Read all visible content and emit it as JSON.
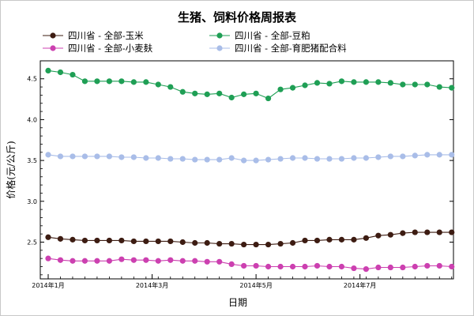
{
  "chart_data": {
    "type": "line",
    "title": "生猪、饲料价格周报表",
    "xlabel": "日期",
    "ylabel": "价格(元/公斤)",
    "ylim": [
      2.05,
      4.72
    ],
    "yticks": [
      2.5,
      3.0,
      3.5,
      4.0,
      4.5
    ],
    "ytick_labels": [
      "2.5",
      "3.0",
      "3.5",
      "4.0",
      "4.5"
    ],
    "xlim": [
      0,
      32.5
    ],
    "xticks": [
      0,
      8.5,
      17,
      25.5
    ],
    "xtick_labels": [
      "2014年1月",
      "2014年3月",
      "2014年5月",
      "2014年7月"
    ],
    "grid": false,
    "legend_position": "top",
    "series": [
      {
        "name": "四川省 - 全部-玉米",
        "color": "#3d1c12",
        "values": [
          2.56,
          2.54,
          2.53,
          2.52,
          2.52,
          2.52,
          2.52,
          2.51,
          2.51,
          2.51,
          2.51,
          2.5,
          2.49,
          2.49,
          2.48,
          2.48,
          2.47,
          2.47,
          2.47,
          2.48,
          2.49,
          2.52,
          2.52,
          2.53,
          2.53,
          2.53,
          2.55,
          2.58,
          2.59,
          2.61,
          2.62,
          2.62,
          2.62,
          2.62
        ]
      },
      {
        "name": "四川省 - 全部-豆粕",
        "color": "#1f9f55",
        "values": [
          4.6,
          4.58,
          4.55,
          4.47,
          4.47,
          4.47,
          4.47,
          4.46,
          4.46,
          4.43,
          4.4,
          4.34,
          4.32,
          4.31,
          4.32,
          4.27,
          4.31,
          4.32,
          4.26,
          4.37,
          4.39,
          4.42,
          4.45,
          4.44,
          4.47,
          4.46,
          4.46,
          4.46,
          4.45,
          4.43,
          4.43,
          4.43,
          4.4,
          4.39
        ]
      },
      {
        "name": "四川省 - 全部-小麦麸",
        "color": "#cc40b0",
        "values": [
          2.3,
          2.28,
          2.27,
          2.27,
          2.27,
          2.27,
          2.29,
          2.28,
          2.28,
          2.27,
          2.28,
          2.27,
          2.27,
          2.26,
          2.26,
          2.23,
          2.21,
          2.21,
          2.2,
          2.2,
          2.2,
          2.2,
          2.21,
          2.2,
          2.2,
          2.18,
          2.17,
          2.19,
          2.19,
          2.19,
          2.2,
          2.21,
          2.21,
          2.2
        ]
      },
      {
        "name": "四川省 - 全部-育肥猪配合料",
        "color": "#a9bde8",
        "values": [
          3.57,
          3.55,
          3.55,
          3.55,
          3.55,
          3.55,
          3.54,
          3.54,
          3.53,
          3.53,
          3.52,
          3.52,
          3.51,
          3.51,
          3.51,
          3.53,
          3.5,
          3.5,
          3.51,
          3.52,
          3.53,
          3.53,
          3.52,
          3.52,
          3.52,
          3.53,
          3.53,
          3.54,
          3.55,
          3.55,
          3.56,
          3.57,
          3.57,
          3.57
        ]
      }
    ]
  }
}
